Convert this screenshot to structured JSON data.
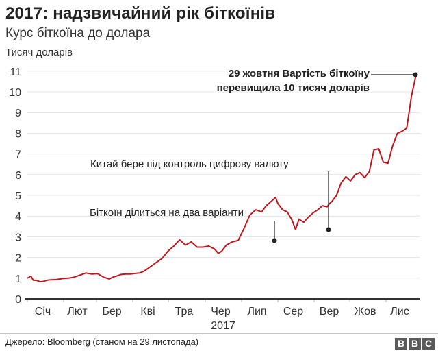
{
  "header": {
    "title": "2017: надзвичайний рік біткоїнів",
    "subtitle": "Курс біткоїна до долара"
  },
  "footer": {
    "source": "Джерело: Bloomberg (станом на 29 листопада)",
    "logo": [
      "B",
      "B",
      "C"
    ]
  },
  "colors": {
    "line": "#c0171d",
    "grid": "#e4e4e4",
    "axis": "#333333",
    "marker": "#222222"
  },
  "chart_data": {
    "type": "line",
    "title": "2017: надзвичайний рік біткоїнів",
    "subtitle": "Курс біткоїна до долара",
    "xlabel": "2017",
    "ylabel": "Тисяч доларів",
    "ylim": [
      0,
      11
    ],
    "yticks": [
      0,
      1,
      2,
      3,
      4,
      5,
      6,
      7,
      8,
      9,
      10,
      11
    ],
    "grid": true,
    "legend": "none",
    "categories": [
      "Січ",
      "Лют",
      "Бер",
      "Кві",
      "Тра",
      "Чер",
      "Лип",
      "Сер",
      "Вер",
      "Жов",
      "Лис"
    ],
    "series": [
      {
        "name": "Курс біткоїна (тис. $)",
        "x_day": [
          0,
          3,
          5,
          8,
          11,
          14,
          17,
          20,
          25,
          30,
          35,
          40,
          45,
          50,
          55,
          60,
          65,
          70,
          73,
          76,
          80,
          84,
          88,
          92,
          96,
          100,
          105,
          110,
          115,
          120,
          125,
          130,
          135,
          140,
          145,
          150,
          155,
          160,
          163,
          166,
          170,
          175,
          180,
          185,
          190,
          195,
          200,
          204,
          208,
          212,
          214,
          218,
          222,
          226,
          229,
          232,
          236,
          240,
          244,
          248,
          252,
          256,
          258,
          260,
          264,
          268,
          272,
          276,
          280,
          284,
          288,
          292,
          296,
          300,
          304,
          308,
          312,
          316,
          320,
          324,
          328,
          332
        ],
        "values": [
          1.0,
          1.1,
          0.9,
          0.89,
          0.82,
          0.85,
          0.9,
          0.92,
          0.93,
          0.98,
          1.0,
          1.05,
          1.15,
          1.25,
          1.2,
          1.22,
          1.05,
          0.96,
          1.05,
          1.1,
          1.18,
          1.2,
          1.2,
          1.23,
          1.25,
          1.35,
          1.55,
          1.75,
          1.95,
          2.3,
          2.55,
          2.85,
          2.6,
          2.75,
          2.5,
          2.5,
          2.55,
          2.4,
          2.2,
          2.3,
          2.6,
          2.75,
          2.82,
          3.4,
          4.05,
          4.3,
          4.2,
          4.5,
          4.7,
          4.9,
          4.6,
          4.3,
          4.2,
          3.8,
          3.35,
          3.85,
          3.7,
          3.95,
          4.15,
          4.3,
          4.5,
          4.45,
          4.6,
          4.7,
          5.0,
          5.6,
          5.9,
          5.7,
          6.0,
          6.1,
          5.85,
          6.15,
          7.2,
          7.25,
          6.6,
          6.55,
          7.4,
          8.0,
          8.1,
          8.25,
          9.8,
          10.85
        ]
      }
    ],
    "annotations": [
      {
        "text": "Біткоїн ділиться на два варіанти",
        "date": "1 серпня",
        "value": 2.82
      },
      {
        "text": "Китай бере під контроль цифрову валюту",
        "date": "вересень",
        "value": 3.35
      },
      {
        "text_line1": "29 жовтня Вартість біткоїну",
        "text_line2": "перевищила 10 тисяч доларів",
        "value": 10.85
      }
    ]
  },
  "annotations": {
    "a1": "Біткоїн ділиться на два варіанти",
    "a2": "Китай бере під контроль цифрову валюту",
    "a3_line1": "29 жовтня Вартість біткоїну",
    "a3_line2": "перевищила 10 тисяч доларів"
  }
}
